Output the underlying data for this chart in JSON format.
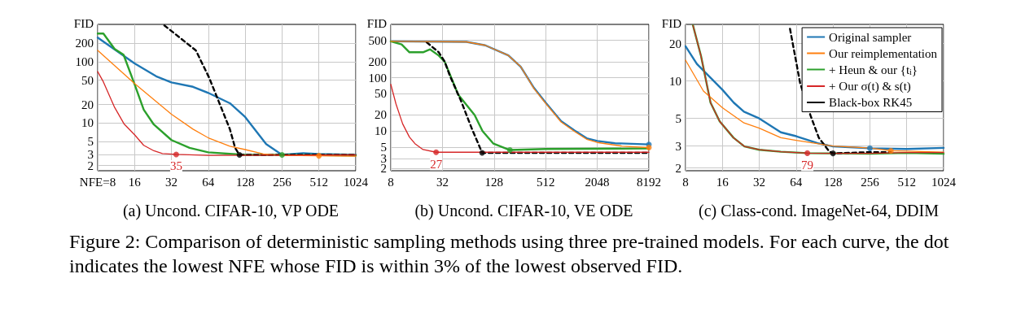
{
  "chart_data": [
    {
      "type": "line",
      "title": "(a) Uncond. CIFAR-10, VP ODE",
      "ylabel": "FID",
      "annotations": [
        {
          "text": "35",
          "x": 35,
          "y": 3.05
        }
      ],
      "log": "xy",
      "grid": true,
      "legend": false,
      "marker": "none",
      "xlim": [
        8,
        1024
      ],
      "xticks": [
        {
          "value": 8,
          "label": "NFE=8"
        },
        16,
        32,
        64,
        128,
        256,
        512,
        1024
      ],
      "ylim": [
        1.65,
        410
      ],
      "yticks": [
        2,
        3,
        5,
        10,
        20,
        50,
        100,
        200
      ],
      "series": [
        {
          "color": "#1f77b4",
          "x": [
            8,
            16,
            24,
            32,
            48,
            64,
            96,
            128,
            190,
            256,
            380,
            512,
            1024
          ],
          "values": [
            249,
            94,
            58,
            46,
            39,
            31,
            21,
            12.5,
            4.5,
            3.0,
            3.2,
            3.1,
            3.0
          ]
        },
        {
          "color": "#ff7f0e",
          "x": [
            8,
            16,
            32,
            48,
            64,
            96,
            128,
            180,
            256,
            512,
            1024
          ],
          "values": [
            154,
            44,
            13.9,
            7.9,
            5.7,
            4.15,
            3.66,
            3.1,
            2.95,
            2.9,
            2.85
          ]
        },
        {
          "color": "#2ca02c",
          "x": [
            8,
            8.9,
            11,
            13,
            16,
            19,
            23,
            32,
            45,
            64,
            128,
            256,
            1024
          ],
          "values": [
            290,
            290,
            162,
            131,
            43,
            16.5,
            9.4,
            5.25,
            3.9,
            3.3,
            3.0,
            3.0,
            2.95
          ]
        },
        {
          "color": "#d62728",
          "x": [
            8,
            8.9,
            11,
            13.1,
            16,
            19,
            23,
            27,
            35,
            64,
            1024
          ],
          "values": [
            69,
            47,
            17.9,
            9.7,
            6.4,
            4.3,
            3.5,
            3.15,
            3.05,
            2.95,
            3.0
          ]
        },
        {
          "color": "#000000",
          "line_style": "dashed",
          "x": [
            28,
            50.6,
            65,
            96,
            106,
            115,
            1024
          ],
          "values": [
            395,
            154,
            55,
            7.9,
            3.9,
            3.0,
            3.0
          ]
        },
        {
          "type": "scatter",
          "marker": "circle",
          "color": "#d62728",
          "x": [
            35
          ],
          "values": [
            3.05
          ]
        },
        {
          "type": "scatter",
          "marker": "circle",
          "color": "#000000",
          "x": [
            115
          ],
          "values": [
            3.0
          ]
        },
        {
          "type": "scatter",
          "marker": "circle",
          "color": "#2ca02c",
          "x": [
            256
          ],
          "values": [
            3.0
          ]
        },
        {
          "type": "scatter",
          "marker": "circle",
          "color": "#ff7f0e",
          "x": [
            512
          ],
          "values": [
            2.9
          ]
        }
      ]
    },
    {
      "type": "line",
      "title": "(b) Uncond. CIFAR-10, VE ODE",
      "ylabel": "FID",
      "annotations": [
        {
          "text": "27",
          "x": 27,
          "y": 4.0
        }
      ],
      "log": "xy",
      "grid": true,
      "legend": false,
      "marker": "none",
      "xlim": [
        8,
        8192
      ],
      "xticks": [
        8,
        32,
        128,
        512,
        2048,
        8192
      ],
      "ylim": [
        1.8,
        1000
      ],
      "yticks": [
        2,
        3,
        5,
        10,
        20,
        50,
        100,
        200,
        500
      ],
      "series": [
        {
          "color": "#1f77b4",
          "x": [
            8,
            61,
            101,
            188,
            262,
            375,
            512,
            775,
            1112,
            1540,
            2048,
            3300,
            8192
          ],
          "values": [
            480,
            470,
            405,
            262,
            161,
            64,
            34,
            15.3,
            10.2,
            7.3,
            6.5,
            5.9,
            5.6
          ]
        },
        {
          "color": "#ff7f0e",
          "x": [
            8,
            61,
            101,
            188,
            262,
            375,
            512,
            775,
            1112,
            1540,
            2048,
            4000,
            8192
          ],
          "values": [
            480,
            470,
            405,
            262,
            161,
            62,
            33,
            14.8,
            9.8,
            7.0,
            6.1,
            5.2,
            4.9
          ]
        },
        {
          "color": "#2ca02c",
          "x": [
            8,
            10.7,
            13.2,
            19,
            23,
            29,
            34,
            49,
            76,
            94,
            126,
            196,
            512,
            8192
          ],
          "values": [
            480,
            420,
            300,
            300,
            340,
            260,
            200,
            48,
            20,
            10,
            5.8,
            4.4,
            4.6,
            4.7
          ]
        },
        {
          "color": "#d62728",
          "x": [
            8,
            9.2,
            11,
            13.2,
            15.3,
            19,
            27,
            8192
          ],
          "values": [
            75,
            32,
            13.6,
            7.7,
            5.8,
            4.5,
            4.0,
            4.0
          ]
        },
        {
          "color": "#000000",
          "line_style": "dashed",
          "x": [
            21,
            29,
            34,
            39,
            53,
            70,
            93,
            8192
          ],
          "values": [
            460,
            300,
            200,
            110,
            36,
            11.4,
            3.9,
            3.9
          ]
        },
        {
          "type": "scatter",
          "marker": "circle",
          "color": "#d62728",
          "x": [
            27
          ],
          "values": [
            4.0
          ]
        },
        {
          "type": "scatter",
          "marker": "circle",
          "color": "#000000",
          "x": [
            93
          ],
          "values": [
            3.9
          ]
        },
        {
          "type": "scatter",
          "marker": "circle",
          "color": "#2ca02c",
          "x": [
            196
          ],
          "values": [
            4.4
          ]
        },
        {
          "type": "scatter",
          "marker": "circle",
          "color": "#1f77b4",
          "x": [
            8192
          ],
          "values": [
            5.6
          ]
        },
        {
          "type": "scatter",
          "marker": "circle",
          "color": "#ff7f0e",
          "x": [
            8192
          ],
          "values": [
            4.9
          ]
        }
      ]
    },
    {
      "type": "line",
      "title": "(c) Class-cond. ImageNet-64, DDIM",
      "ylabel": "FID",
      "annotations": [
        {
          "text": "79",
          "x": 79,
          "y": 2.63
        }
      ],
      "log": "xy",
      "grid": true,
      "legend": "top right",
      "marker": "none",
      "xlim": [
        8,
        1024
      ],
      "xticks": [
        8,
        16,
        32,
        64,
        128,
        256,
        512,
        1024
      ],
      "ylim": [
        1.9,
        28.5
      ],
      "yticks": [
        2,
        3,
        5,
        10,
        20
      ],
      "series": [
        {
          "name": "Original sampler",
          "color": "#1f77b4",
          "x": [
            8,
            9.9,
            16,
            19.8,
            24,
            32,
            48,
            64,
            96,
            128,
            256,
            512,
            1024
          ],
          "values": [
            19,
            13.7,
            8.5,
            6.7,
            5.66,
            5.0,
            3.87,
            3.6,
            3.16,
            2.98,
            2.88,
            2.84,
            2.9
          ]
        },
        {
          "name": "Our reimplementation",
          "color": "#ff7f0e",
          "x": [
            8,
            11.2,
            16,
            24,
            32,
            48,
            64,
            128,
            256,
            380,
            1024
          ],
          "values": [
            14.7,
            8.3,
            6.1,
            4.6,
            4.18,
            3.5,
            3.33,
            3.0,
            2.89,
            2.75,
            2.68
          ]
        },
        {
          "name": "+ Heun & our {t$_{i}$}",
          "color": "#2ca02c",
          "x": [
            9.2,
            10.7,
            12.8,
            15.2,
            19.7,
            24.2,
            32,
            48,
            79,
            128,
            256,
            512,
            1024
          ],
          "values": [
            28,
            15.9,
            6.7,
            4.74,
            3.5,
            2.98,
            2.8,
            2.7,
            2.63,
            2.62,
            2.6,
            2.64,
            2.6
          ]
        },
        {
          "name": "+ Our σ(t) & s(t)",
          "color": "#d62728",
          "x": [
            9.2,
            10.7,
            12.8,
            15.2,
            19.7,
            24.2,
            32,
            48,
            79,
            128,
            256,
            512,
            1024
          ],
          "values": [
            28,
            15.9,
            6.7,
            4.74,
            3.5,
            2.98,
            2.8,
            2.7,
            2.63,
            2.62,
            2.62,
            2.66,
            2.66
          ]
        },
        {
          "name": "Black-box RK45",
          "color": "#000000",
          "line_style": "dashed",
          "x": [
            57,
            69,
            84,
            98,
            119,
            128,
            256,
            380
          ],
          "values": [
            26.3,
            9.6,
            5.25,
            3.5,
            2.72,
            2.62,
            2.68,
            2.68
          ]
        },
        {
          "type": "scatter",
          "marker": "circle",
          "color": "#d62728",
          "x": [
            79
          ],
          "values": [
            2.63
          ]
        },
        {
          "type": "scatter",
          "marker": "circle",
          "color": "#000000",
          "x": [
            128
          ],
          "values": [
            2.62
          ]
        },
        {
          "type": "scatter",
          "marker": "circle",
          "color": "#1f77b4",
          "x": [
            256
          ],
          "values": [
            2.88
          ]
        },
        {
          "type": "scatter",
          "marker": "circle",
          "color": "#ff7f0e",
          "x": [
            380
          ],
          "values": [
            2.75
          ]
        }
      ]
    },
    {
      "type": "other",
      "annotations": [
        "Figure 2: Comparison of deterministic sampling methods using three pre-trained models. For each curve, the dot indicates the lowest NFE whose FID is within 3% of the lowest observed FID."
      ]
    }
  ]
}
